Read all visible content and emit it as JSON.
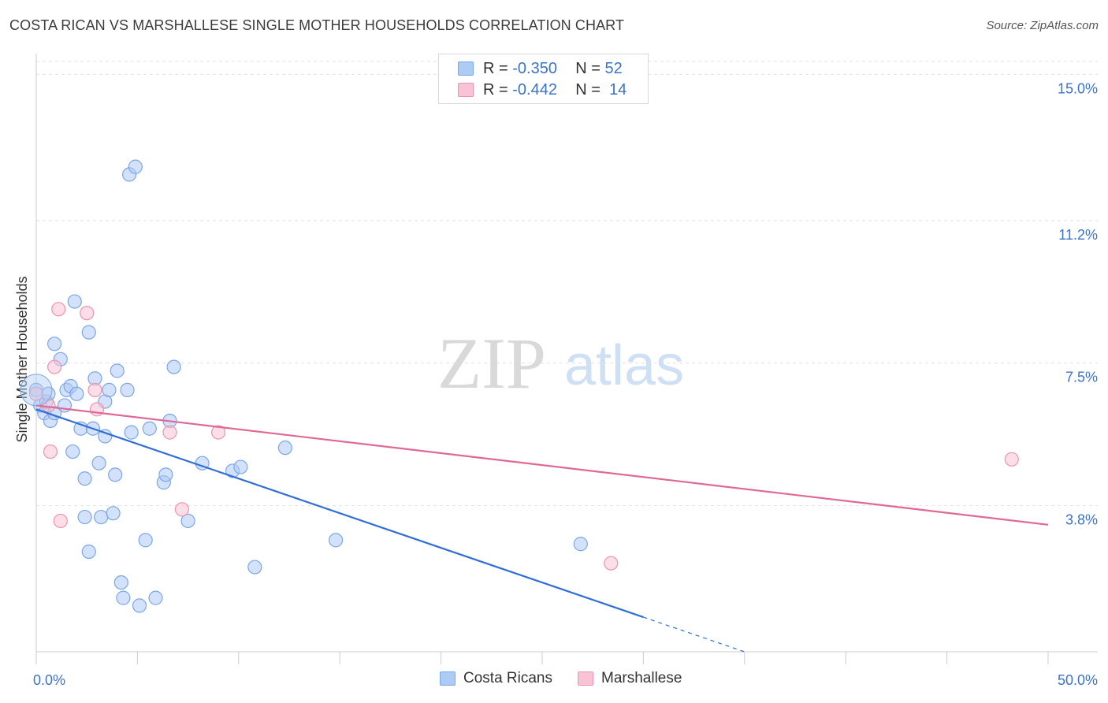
{
  "title": "COSTA RICAN VS MARSHALLESE SINGLE MOTHER HOUSEHOLDS CORRELATION CHART",
  "source": "Source: ZipAtlas.com",
  "watermark": {
    "zip": "ZIP",
    "atlas": "atlas"
  },
  "legend": {
    "r_label": "R =",
    "n_label": "N =",
    "rows": [
      {
        "r": "-0.350",
        "n": "52",
        "color": "#aecbf5",
        "border": "#7aa7e6"
      },
      {
        "r": "-0.442",
        "n": "14",
        "color": "#f8c3d4",
        "border": "#ee93b0"
      }
    ]
  },
  "bottom_legend": [
    "Costa Ricans",
    "Marshallese"
  ],
  "chart_data": {
    "type": "scatter",
    "title": "COSTA RICAN VS MARSHALLESE SINGLE MOTHER HOUSEHOLDS CORRELATION CHART",
    "xlabel": "",
    "ylabel": "Single Mother Households",
    "xlim": [
      0,
      50
    ],
    "ylim": [
      0,
      15.5
    ],
    "x_tick_labels": [
      "0.0%",
      "50.0%"
    ],
    "y_ticks": [
      3.8,
      7.5,
      11.2,
      15.0
    ],
    "y_tick_labels": [
      "3.8%",
      "7.5%",
      "11.2%",
      "15.0%"
    ],
    "grid": "horizontal dashed",
    "legend_placement": "top-center",
    "series": [
      {
        "name": "Costa Ricans",
        "color": "#aecbf5",
        "stroke": "#7aa7e6",
        "line_color": "#2f6fd6",
        "trend": {
          "x0": 0.0,
          "y0": 6.3,
          "x1": 30.0,
          "y1": 0.9,
          "dash_to_x": 35.0
        },
        "points": [
          [
            0.0,
            6.8
          ],
          [
            0.2,
            6.4
          ],
          [
            0.4,
            6.2
          ],
          [
            0.5,
            6.5
          ],
          [
            0.6,
            6.7
          ],
          [
            0.7,
            6.0
          ],
          [
            0.9,
            6.2
          ],
          [
            0.9,
            8.0
          ],
          [
            1.2,
            7.6
          ],
          [
            1.4,
            6.4
          ],
          [
            1.5,
            6.8
          ],
          [
            1.7,
            6.9
          ],
          [
            1.8,
            5.2
          ],
          [
            1.9,
            9.1
          ],
          [
            2.0,
            6.7
          ],
          [
            2.2,
            5.8
          ],
          [
            2.4,
            3.5
          ],
          [
            2.4,
            4.5
          ],
          [
            2.6,
            2.6
          ],
          [
            2.6,
            8.3
          ],
          [
            2.8,
            5.8
          ],
          [
            2.9,
            7.1
          ],
          [
            3.1,
            4.9
          ],
          [
            3.2,
            3.5
          ],
          [
            3.4,
            5.6
          ],
          [
            3.4,
            6.5
          ],
          [
            3.6,
            6.8
          ],
          [
            3.8,
            3.6
          ],
          [
            3.9,
            4.6
          ],
          [
            4.0,
            7.3
          ],
          [
            4.2,
            1.8
          ],
          [
            4.3,
            1.4
          ],
          [
            4.5,
            6.8
          ],
          [
            4.6,
            12.4
          ],
          [
            4.7,
            5.7
          ],
          [
            4.9,
            12.6
          ],
          [
            5.1,
            1.2
          ],
          [
            5.4,
            2.9
          ],
          [
            5.6,
            5.8
          ],
          [
            5.9,
            1.4
          ],
          [
            6.3,
            4.4
          ],
          [
            6.4,
            4.6
          ],
          [
            6.6,
            6.0
          ],
          [
            6.8,
            7.4
          ],
          [
            7.5,
            3.4
          ],
          [
            8.2,
            4.9
          ],
          [
            9.7,
            4.7
          ],
          [
            10.1,
            4.8
          ],
          [
            10.8,
            2.2
          ],
          [
            12.3,
            5.3
          ],
          [
            14.8,
            2.9
          ],
          [
            26.9,
            2.8
          ]
        ]
      },
      {
        "name": "Marshallese",
        "color": "#f8c3d4",
        "stroke": "#ee93b0",
        "line_color": "#e06894",
        "trend": {
          "x0": 0.0,
          "y0": 6.4,
          "x1": 50.0,
          "y1": 3.3
        },
        "points": [
          [
            0.0,
            6.7
          ],
          [
            0.6,
            6.4
          ],
          [
            0.7,
            5.2
          ],
          [
            0.9,
            7.4
          ],
          [
            1.1,
            8.9
          ],
          [
            1.2,
            3.4
          ],
          [
            2.5,
            8.8
          ],
          [
            2.9,
            6.8
          ],
          [
            3.0,
            6.3
          ],
          [
            6.6,
            5.7
          ],
          [
            7.2,
            3.7
          ],
          [
            9.0,
            5.7
          ],
          [
            28.4,
            2.3
          ],
          [
            48.2,
            5.0
          ]
        ]
      }
    ]
  }
}
